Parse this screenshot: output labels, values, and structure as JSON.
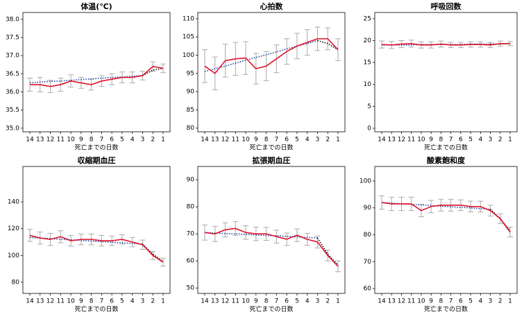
{
  "chart_data": [
    {
      "type": "line",
      "title": "体温(℃)",
      "xlabel": "死亡までの日数",
      "categories": [
        14,
        13,
        12,
        11,
        10,
        9,
        8,
        7,
        6,
        5,
        4,
        3,
        2,
        1
      ],
      "values": [
        36.2,
        36.2,
        36.15,
        36.2,
        36.3,
        36.25,
        36.2,
        36.3,
        36.35,
        36.4,
        36.4,
        36.45,
        36.7,
        36.65
      ],
      "errors": [
        0.18,
        0.2,
        0.17,
        0.18,
        0.17,
        0.15,
        0.15,
        0.15,
        0.15,
        0.15,
        0.15,
        0.12,
        0.13,
        0.12
      ],
      "trend": [
        36.25,
        36.27,
        36.29,
        36.3,
        36.32,
        36.34,
        36.36,
        36.38,
        36.4,
        36.41,
        36.43,
        36.45,
        null,
        null
      ],
      "trend_end": [
        null,
        null,
        null,
        null,
        null,
        null,
        null,
        null,
        null,
        null,
        null,
        36.45,
        36.6,
        36.65
      ],
      "ylim": [
        34.9,
        38.19
      ],
      "yticks": [
        {
          "value": 35,
          "label": "35.0"
        },
        {
          "value": 35.5,
          "label": "35.5"
        },
        {
          "value": 36,
          "label": "36.0"
        },
        {
          "value": 36.5,
          "label": "36.5"
        },
        {
          "value": 37,
          "label": "37.0"
        },
        {
          "value": 37.5,
          "label": "37.5"
        },
        {
          "value": 38,
          "label": "38.0"
        }
      ],
      "color": "#e0102a",
      "error_color": "#aaaaaa",
      "trend_color": "#1f3fa0",
      "trend_end_color": "#000000"
    },
    {
      "type": "line",
      "title": "心拍数",
      "xlabel": "死亡までの日数",
      "categories": [
        14,
        13,
        12,
        11,
        10,
        9,
        8,
        7,
        6,
        5,
        4,
        3,
        2,
        1
      ],
      "values": [
        97,
        95,
        98.5,
        99,
        99.2,
        96.3,
        97,
        99,
        101,
        102.5,
        103.5,
        104.5,
        104.5,
        101.5
      ],
      "errors": [
        4.5,
        4.5,
        4.5,
        4.5,
        4.5,
        4.2,
        4,
        3.8,
        3.5,
        3.5,
        3.5,
        3.2,
        3,
        3
      ],
      "trend": [
        95.5,
        96.3,
        97,
        97.8,
        98.6,
        99.4,
        100.1,
        100.9,
        101.7,
        102.5,
        103.2,
        104,
        null,
        null
      ],
      "trend_end": [
        null,
        null,
        null,
        null,
        null,
        null,
        null,
        null,
        null,
        null,
        null,
        104,
        103.2,
        101.5
      ],
      "ylim": [
        79,
        111.7
      ],
      "yticks": [
        80,
        85,
        90,
        95,
        100,
        105,
        110
      ],
      "color": "#e0102a",
      "error_color": "#aaaaaa",
      "trend_color": "#1f3fa0",
      "trend_end_color": "#000000"
    },
    {
      "type": "line",
      "title": "呼吸回数",
      "xlabel": "死亡までの日数",
      "categories": [
        14,
        13,
        12,
        11,
        10,
        9,
        8,
        7,
        6,
        5,
        4,
        3,
        2,
        1
      ],
      "values": [
        19.1,
        19,
        19.2,
        19.3,
        19,
        19,
        19.2,
        19,
        19,
        19.1,
        19.1,
        19,
        19.3,
        19.3
      ],
      "errors": [
        0.8,
        0.8,
        0.8,
        0.8,
        0.7,
        0.7,
        0.7,
        0.6,
        0.6,
        0.6,
        0.6,
        0.6,
        0.6,
        0.5
      ],
      "trend": [
        19,
        19,
        19,
        19,
        19.1,
        19.1,
        19.1,
        19.1,
        19.1,
        19.2,
        19.2,
        19.2,
        null,
        null
      ],
      "trend_end": [
        null,
        null,
        null,
        null,
        null,
        null,
        null,
        null,
        null,
        null,
        null,
        19.2,
        19.2,
        19.3
      ],
      "ylim": [
        -0.8,
        26.4
      ],
      "yticks": [
        0,
        5,
        10,
        15,
        20,
        25
      ],
      "color": "#e0102a",
      "error_color": "#aaaaaa",
      "trend_color": "#1f3fa0",
      "trend_end_color": "#000000"
    },
    {
      "type": "line",
      "title": "収縮期血圧",
      "xlabel": "死亡までの日数",
      "categories": [
        14,
        13,
        12,
        11,
        10,
        9,
        8,
        7,
        6,
        5,
        4,
        3,
        2,
        1
      ],
      "values": [
        115,
        113,
        112,
        114,
        111,
        112,
        112,
        111,
        111,
        112,
        110,
        108,
        100,
        95
      ],
      "errors": [
        4.5,
        4.5,
        4.5,
        4.5,
        4,
        4,
        4,
        4,
        3.5,
        3.5,
        3.5,
        3.5,
        3,
        3
      ],
      "trend": [
        113.5,
        113,
        112.6,
        112.1,
        111.7,
        111.2,
        110.8,
        110.3,
        109.9,
        109.4,
        109,
        108.5,
        null,
        null
      ],
      "trend_end": [
        null,
        null,
        null,
        null,
        null,
        null,
        null,
        null,
        null,
        null,
        null,
        108.5,
        101,
        95.5
      ],
      "ylim": [
        71.7,
        166.4
      ],
      "yticks": [
        80,
        100,
        120,
        140
      ],
      "color": "#e0102a",
      "error_color": "#aaaaaa",
      "trend_color": "#1f3fa0",
      "trend_end_color": "#000000"
    },
    {
      "type": "line",
      "title": "拡張期血圧",
      "xlabel": "死亡までの日数",
      "categories": [
        14,
        13,
        12,
        11,
        10,
        9,
        8,
        7,
        6,
        5,
        4,
        3,
        2,
        1
      ],
      "values": [
        70.5,
        70,
        71.5,
        72,
        70.5,
        70,
        70,
        69,
        68,
        69.5,
        68,
        67,
        62,
        58
      ],
      "errors": [
        2.8,
        2.8,
        2.6,
        2.6,
        2.5,
        2.5,
        2.4,
        2.4,
        2.3,
        2.3,
        2.2,
        2.2,
        2,
        2
      ],
      "trend": [
        70.5,
        70.3,
        70.1,
        70,
        69.8,
        69.6,
        69.4,
        69.3,
        69.1,
        68.9,
        68.7,
        68.5,
        null,
        null
      ],
      "trend_end": [
        null,
        null,
        null,
        null,
        null,
        null,
        null,
        null,
        null,
        null,
        null,
        68.5,
        62.5,
        58.5
      ],
      "ylim": [
        48,
        94.9
      ],
      "yticks": [
        50,
        60,
        70,
        80,
        90
      ],
      "color": "#e0102a",
      "error_color": "#aaaaaa",
      "trend_color": "#1f3fa0",
      "trend_end_color": "#000000"
    },
    {
      "type": "line",
      "title": "酸素飽和度",
      "xlabel": "死亡までの日数",
      "categories": [
        14,
        13,
        12,
        11,
        10,
        9,
        8,
        7,
        6,
        5,
        4,
        3,
        2,
        1
      ],
      "values": [
        92,
        91.5,
        91.5,
        91.5,
        89,
        90.5,
        91,
        91,
        91,
        90.5,
        90.5,
        89,
        86,
        81
      ],
      "errors": [
        2.5,
        2.5,
        2.5,
        2.5,
        2.3,
        2.3,
        2.2,
        2.2,
        2,
        2,
        2,
        2,
        1.8,
        1.8
      ],
      "trend": [
        92,
        91.8,
        91.5,
        91.3,
        91.1,
        90.9,
        90.6,
        90.4,
        90.2,
        90,
        89.7,
        89.5,
        null,
        null
      ],
      "trend_end": [
        null,
        null,
        null,
        null,
        null,
        null,
        null,
        null,
        null,
        null,
        null,
        89.5,
        86,
        81.5
      ],
      "ylim": [
        58.2,
        105.4
      ],
      "yticks": [
        60,
        70,
        80,
        90,
        100
      ],
      "color": "#e0102a",
      "error_color": "#aaaaaa",
      "trend_color": "#1f3fa0",
      "trend_end_color": "#000000"
    }
  ]
}
